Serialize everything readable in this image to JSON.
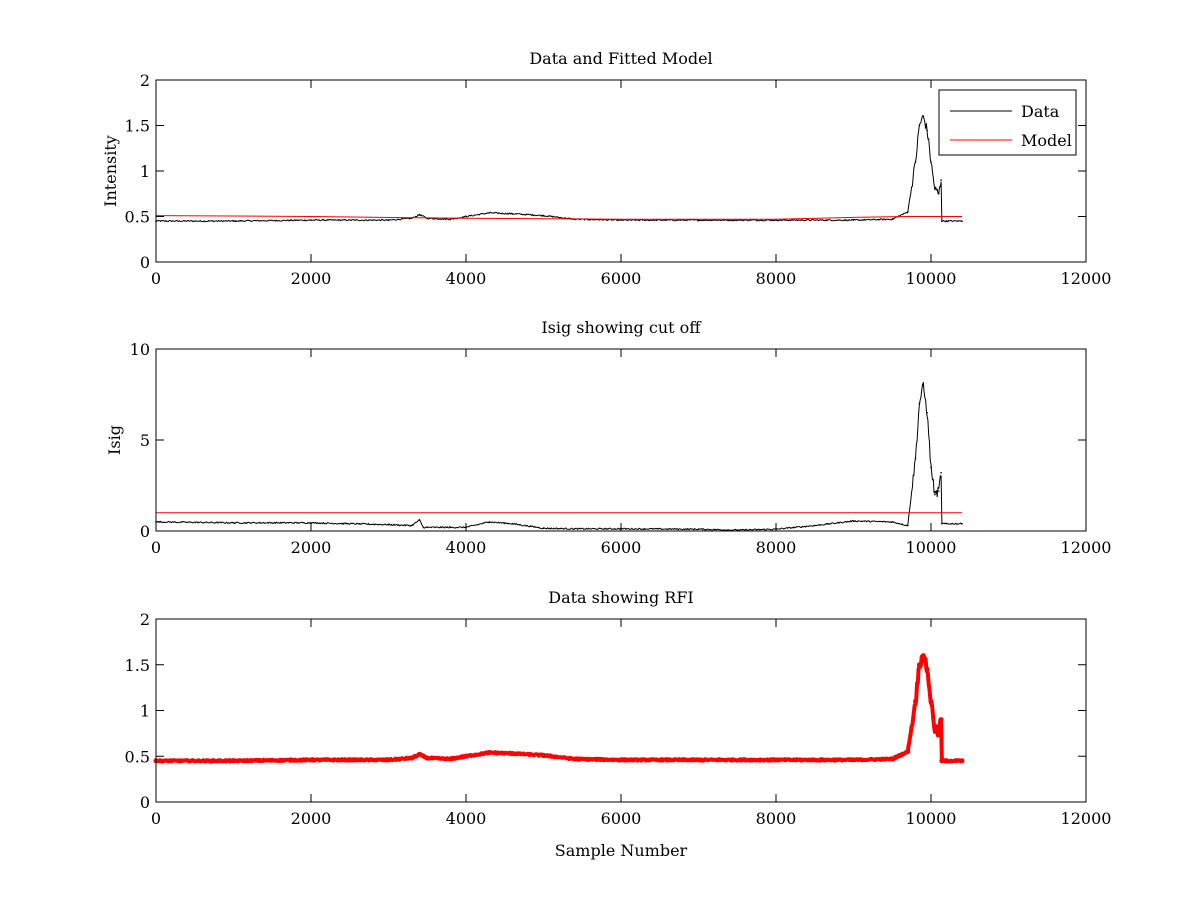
{
  "figure": {
    "background": "#ffffff"
  },
  "chart_data": [
    {
      "type": "line",
      "title": "Data and Fitted Model",
      "xlabel": "",
      "ylabel": "Intensity",
      "xlim": [
        0,
        12000
      ],
      "ylim": [
        0,
        2
      ],
      "xticks": [
        0,
        2000,
        4000,
        6000,
        8000,
        10000,
        12000
      ],
      "yticks": [
        0,
        0.5,
        1,
        1.5,
        2
      ],
      "ytick_labels": [
        "0",
        "0.5",
        "1",
        "1.5",
        "2"
      ],
      "legend": {
        "position": "top-right",
        "entries": [
          "Data",
          "Model"
        ]
      },
      "series": [
        {
          "name": "Data",
          "color": "#000000",
          "style": "noisy-line",
          "x": [
            0,
            1000,
            2000,
            3000,
            3300,
            3400,
            3500,
            3800,
            4000,
            4300,
            4600,
            5000,
            5400,
            6000,
            7000,
            8000,
            9000,
            9500,
            9700,
            9800,
            9850,
            9900,
            9950,
            10000,
            10050,
            10100,
            10130,
            10140,
            10200,
            10400
          ],
          "y": [
            0.45,
            0.45,
            0.46,
            0.46,
            0.48,
            0.52,
            0.48,
            0.47,
            0.5,
            0.54,
            0.53,
            0.51,
            0.47,
            0.46,
            0.46,
            0.46,
            0.46,
            0.47,
            0.55,
            1.1,
            1.5,
            1.6,
            1.45,
            1.1,
            0.8,
            0.75,
            0.9,
            0.45,
            0.45,
            0.45
          ]
        },
        {
          "name": "Model",
          "color": "#ff0000",
          "style": "line",
          "x": [
            0,
            2000,
            4000,
            6000,
            8000,
            9000,
            9700,
            10400
          ],
          "y": [
            0.51,
            0.5,
            0.48,
            0.47,
            0.47,
            0.49,
            0.5,
            0.5
          ]
        }
      ]
    },
    {
      "type": "line",
      "title": "Isig showing cut off",
      "xlabel": "",
      "ylabel": "Isig",
      "xlim": [
        0,
        12000
      ],
      "ylim": [
        0,
        10
      ],
      "xticks": [
        0,
        2000,
        4000,
        6000,
        8000,
        10000,
        12000
      ],
      "yticks": [
        0,
        5,
        10
      ],
      "ytick_labels": [
        "0",
        "5",
        "10"
      ],
      "series": [
        {
          "color": "#000000",
          "style": "noisy-line",
          "x": [
            0,
            1000,
            2000,
            3000,
            3300,
            3400,
            3450,
            3500,
            3800,
            4000,
            4300,
            4600,
            5000,
            5400,
            6000,
            7000,
            7500,
            8000,
            8500,
            9000,
            9500,
            9700,
            9800,
            9850,
            9900,
            9950,
            10000,
            10050,
            10100,
            10130,
            10140,
            10200,
            10400
          ],
          "y": [
            0.5,
            0.45,
            0.45,
            0.35,
            0.3,
            0.6,
            0.2,
            0.2,
            0.2,
            0.2,
            0.5,
            0.4,
            0.15,
            0.12,
            0.12,
            0.1,
            0.05,
            0.1,
            0.3,
            0.55,
            0.5,
            0.3,
            4.0,
            7.0,
            8.0,
            6.5,
            3.5,
            2.0,
            2.2,
            3.2,
            0.4,
            0.4,
            0.4
          ]
        },
        {
          "color": "#ff0000",
          "style": "line",
          "x": [
            0,
            10400
          ],
          "y": [
            1.0,
            1.0
          ]
        }
      ]
    },
    {
      "type": "scatter",
      "title": "Data showing RFI",
      "xlabel": "Sample Number",
      "ylabel": "",
      "xlim": [
        0,
        12000
      ],
      "ylim": [
        0,
        2
      ],
      "xticks": [
        0,
        2000,
        4000,
        6000,
        8000,
        10000,
        12000
      ],
      "yticks": [
        0,
        0.5,
        1,
        1.5,
        2
      ],
      "ytick_labels": [
        "0",
        "0.5",
        "1",
        "1.5",
        "2"
      ],
      "series": [
        {
          "color": "#ff0000",
          "style": "thick-markers",
          "x": [
            0,
            1000,
            2000,
            3000,
            3300,
            3400,
            3500,
            3800,
            4000,
            4300,
            4600,
            5000,
            5400,
            6000,
            7000,
            8000,
            9000,
            9500,
            9700,
            9800,
            9850,
            9900,
            9950,
            10000,
            10050,
            10100,
            10130,
            10140,
            10200,
            10400
          ],
          "y": [
            0.45,
            0.45,
            0.46,
            0.46,
            0.48,
            0.52,
            0.48,
            0.47,
            0.5,
            0.54,
            0.53,
            0.51,
            0.47,
            0.46,
            0.46,
            0.46,
            0.46,
            0.47,
            0.55,
            1.1,
            1.5,
            1.6,
            1.45,
            1.1,
            0.8,
            0.75,
            0.9,
            0.45,
            0.45,
            0.45
          ]
        }
      ]
    }
  ]
}
